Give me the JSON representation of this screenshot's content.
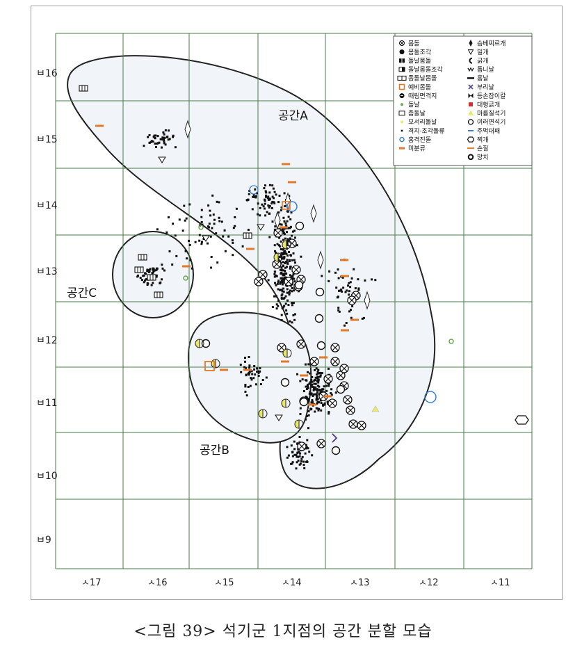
{
  "caption": "<그림 39> 석기군 1지점의 공간 분할 모습",
  "y_ticks": [
    "ㅂ16",
    "ㅂ15",
    "ㅂ14",
    "ㅂ13",
    "ㅂ12",
    "ㅂ11",
    "ㅂ10",
    "ㅂ9"
  ],
  "x_ticks": [
    "ㅅ17",
    "ㅅ16",
    "ㅅ15",
    "ㅅ14",
    "ㅅ13",
    "ㅅ12",
    "ㅅ11"
  ],
  "areas": [
    {
      "label": "공간A"
    },
    {
      "label": "공간B"
    },
    {
      "label": "공간C"
    }
  ],
  "legend": {
    "left": [
      {
        "label": "몸돌",
        "icon": "circle-x-icon"
      },
      {
        "label": "몸돌조각",
        "icon": "half-disc-icon"
      },
      {
        "label": "돌날몸돌",
        "icon": "double-square-icon"
      },
      {
        "label": "돌날몸돌조각",
        "icon": "half-double-square-icon"
      },
      {
        "label": "좀돌날몸돌",
        "icon": "small-blade-core-icon"
      },
      {
        "label": "예비몸돌",
        "icon": "orange-square-icon"
      },
      {
        "label": "때림면격지",
        "icon": "striking-flake-icon"
      },
      {
        "label": "돌날",
        "icon": "green-dot-icon"
      },
      {
        "label": "좀돌날",
        "icon": "micro-blade-icon"
      },
      {
        "label": "모서리돌날",
        "icon": "yellow-dot-icon"
      },
      {
        "label": "격지·조각돌류",
        "icon": "black-dot-icon"
      },
      {
        "label": "홈격진돌",
        "icon": "blue-circle-icon"
      },
      {
        "label": "미분류",
        "icon": "orange-dash-icon"
      }
    ],
    "right": [
      {
        "label": "슴베찌르개",
        "icon": "diamond-arrow-icon"
      },
      {
        "label": "밀개",
        "icon": "triangle-down-icon"
      },
      {
        "label": "긁개",
        "icon": "c-shape-icon"
      },
      {
        "label": "톱니날",
        "icon": "zigzag-icon"
      },
      {
        "label": "홈날",
        "icon": "notch-icon"
      },
      {
        "label": "부리날",
        "icon": "x-cross-icon"
      },
      {
        "label": "등손잡이칼",
        "icon": "bowtie-icon"
      },
      {
        "label": "대형긁개",
        "icon": "red-square-icon"
      },
      {
        "label": "마름질석기",
        "icon": "yellow-triangle-icon"
      },
      {
        "label": "여러면석기",
        "icon": "open-circle-icon"
      },
      {
        "label": "주먹대패",
        "icon": "blue-dash-icon"
      },
      {
        "label": "찍개",
        "icon": "hexagon-icon"
      },
      {
        "label": "손질",
        "icon": "orange-line-icon"
      },
      {
        "label": "망치",
        "icon": "bold-circle-icon"
      }
    ]
  },
  "colors": {
    "grid": "#4a7a4a",
    "area_fill": "#f1f4f8",
    "outline": "#222222",
    "orange": "#e07a2a",
    "blue": "#3a7fd0",
    "green": "#6aa84f",
    "yellow": "#e8e86a",
    "purple": "#5a4a9a",
    "red": "#d03030"
  }
}
